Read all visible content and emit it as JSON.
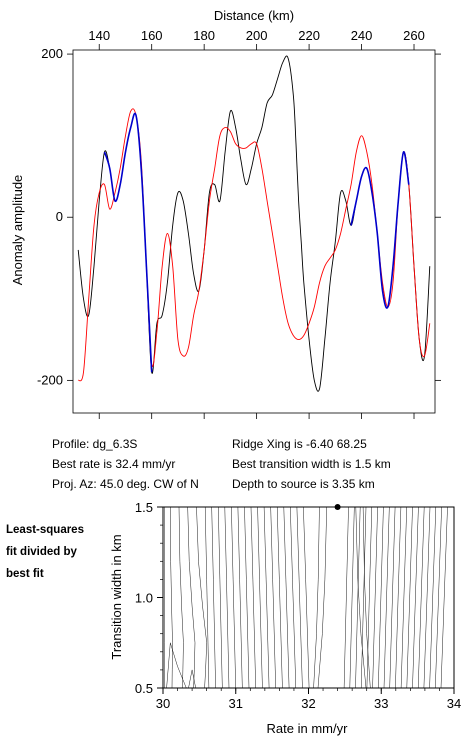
{
  "top_chart": {
    "xlabel": "Distance (km)",
    "ylabel": "Anomaly amplitude",
    "xticks": [
      140,
      160,
      180,
      200,
      220,
      240,
      260
    ],
    "yticks": [
      200,
      0,
      -200
    ]
  },
  "info": {
    "profile": "Profile: dg_6.3S",
    "best_rate": "Best rate is 32.4 mm/yr",
    "proj_az": "Proj. Az: 45.0 deg. CW of N",
    "ridge_xing": "Ridge Xing is -6.40 68.25",
    "transition": "Best transition width is 1.5 km",
    "depth": "Depth to source is   3.35 km"
  },
  "side_note": {
    "line1": "Least-squares",
    "line2": "fit divided by",
    "line3": "best fit"
  },
  "bottom_chart": {
    "xlabel": "Rate in mm/yr",
    "ylabel": "Transition width in km",
    "xticks": [
      "30",
      "31",
      "32",
      "33",
      "34"
    ],
    "yticks": [
      "1.5",
      "1.0",
      "0.5"
    ]
  },
  "colors": {
    "observed": "#000000",
    "model": "#ff0000",
    "fit_window": "#0000cc"
  },
  "chart_data": [
    {
      "type": "line",
      "xlabel": "Distance (km)",
      "ylabel": "Anomaly amplitude",
      "xlim": [
        130,
        268
      ],
      "ylim": [
        -240,
        205
      ],
      "grid": false,
      "series": [
        {
          "color": "#000000",
          "x": [
            132,
            134,
            136,
            138,
            140,
            142,
            144,
            146,
            148,
            150,
            152,
            154,
            156,
            158,
            160,
            162,
            164,
            166,
            168,
            170,
            172,
            174,
            176,
            178,
            180,
            182,
            184,
            186,
            188,
            190,
            192,
            194,
            196,
            198,
            200,
            202,
            204,
            206,
            208,
            210,
            212,
            214,
            215,
            216,
            217,
            218,
            220,
            222,
            224,
            226,
            228,
            230,
            232,
            234,
            236,
            238,
            240,
            242,
            244,
            246,
            248,
            250,
            252,
            254,
            256,
            258,
            260,
            262,
            264,
            266
          ],
          "y": [
            -40,
            -100,
            -120,
            -60,
            20,
            80,
            60,
            20,
            40,
            80,
            110,
            125,
            60,
            -60,
            -190,
            -130,
            -120,
            -80,
            -10,
            30,
            20,
            -20,
            -70,
            -90,
            -40,
            30,
            40,
            20,
            80,
            130,
            110,
            70,
            40,
            60,
            90,
            110,
            140,
            150,
            170,
            190,
            195,
            150,
            90,
            20,
            -30,
            -80,
            -150,
            -200,
            -210,
            -150,
            -80,
            -30,
            30,
            20,
            -10,
            20,
            50,
            60,
            30,
            -20,
            -90,
            -110,
            -60,
            20,
            80,
            40,
            -60,
            -150,
            -170,
            -60
          ]
        },
        {
          "color": "#ff0000",
          "x": [
            132,
            134,
            136,
            138,
            140,
            142,
            144,
            146,
            148,
            150,
            152,
            154,
            156,
            158,
            160,
            162,
            164,
            166,
            168,
            170,
            172,
            174,
            176,
            178,
            180,
            182,
            184,
            186,
            188,
            190,
            192,
            194,
            196,
            198,
            200,
            202,
            204,
            206,
            208,
            210,
            212,
            214,
            216,
            218,
            220,
            222,
            224,
            226,
            228,
            230,
            232,
            234,
            236,
            238,
            240,
            242,
            244,
            246,
            248,
            250,
            252,
            254,
            256,
            258,
            260,
            262,
            264,
            266
          ],
          "y": [
            -200,
            -190,
            -100,
            -10,
            30,
            40,
            10,
            30,
            60,
            100,
            130,
            125,
            70,
            -60,
            -180,
            -140,
            -60,
            -20,
            -60,
            -150,
            -170,
            -160,
            -120,
            -90,
            -40,
            20,
            60,
            100,
            110,
            105,
            90,
            85,
            85,
            90,
            90,
            60,
            20,
            -20,
            -60,
            -100,
            -130,
            -145,
            -150,
            -145,
            -130,
            -110,
            -80,
            -60,
            -50,
            -40,
            -20,
            10,
            40,
            80,
            100,
            80,
            40,
            -20,
            -80,
            -110,
            -80,
            20,
            80,
            40,
            -60,
            -150,
            -170,
            -130
          ]
        }
      ]
    },
    {
      "type": "line",
      "xlabel": "Rate in mm/yr",
      "ylabel": "Transition width in km",
      "xlim": [
        30,
        34
      ],
      "ylim": [
        0.5,
        1.5
      ],
      "grid": false,
      "best_fit_point": {
        "x": 32.4,
        "y": 1.5
      }
    }
  ]
}
